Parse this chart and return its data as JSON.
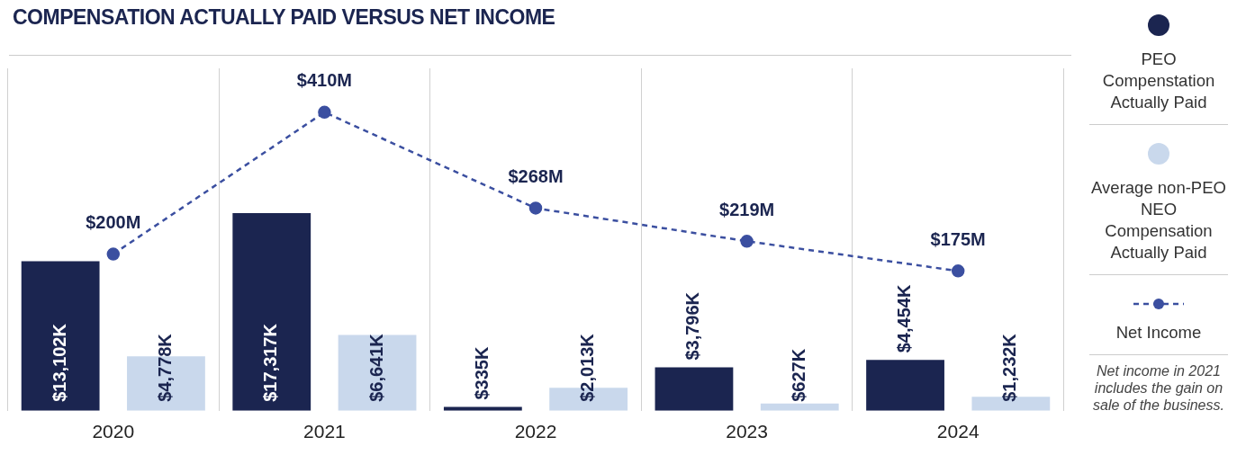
{
  "chart_data": {
    "type": "bar",
    "title": "COMPENSATION ACTUALLY PAID VERSUS NET INCOME",
    "categories": [
      "2020",
      "2021",
      "2022",
      "2023",
      "2024"
    ],
    "series": [
      {
        "name": "PEO Compenstation Actually Paid",
        "color": "#1b2550",
        "values": [
          13102,
          17317,
          335,
          3796,
          4454
        ],
        "value_labels": [
          "$13,102K",
          "$17,317K",
          "$335K",
          "$3,796K",
          "$4,454K"
        ]
      },
      {
        "name": "Average non-PEO NEO Compensation Actually Paid",
        "color": "#c9d8ec",
        "values": [
          4778,
          6641,
          2013,
          627,
          1232
        ],
        "value_labels": [
          "$4,778K",
          "$6,641K",
          "$2,013K",
          "$627K",
          "$1,232K"
        ]
      },
      {
        "name": "Net Income",
        "type": "line",
        "axis": "y2",
        "color": "#3b4fa0",
        "line_style": "dashed",
        "marker": "circle",
        "values": [
          200,
          410,
          268,
          219,
          175
        ],
        "value_labels": [
          "$200M",
          "$410M",
          "$268M",
          "$219M",
          "$175M"
        ]
      }
    ],
    "ylim": [
      0,
      30000
    ],
    "y2lim": [
      -32,
      475
    ],
    "tick_labels": "x",
    "grid": "x",
    "legend": "right",
    "annotations": [
      "Net income in 2021 includes the gain on sale of the business."
    ]
  }
}
